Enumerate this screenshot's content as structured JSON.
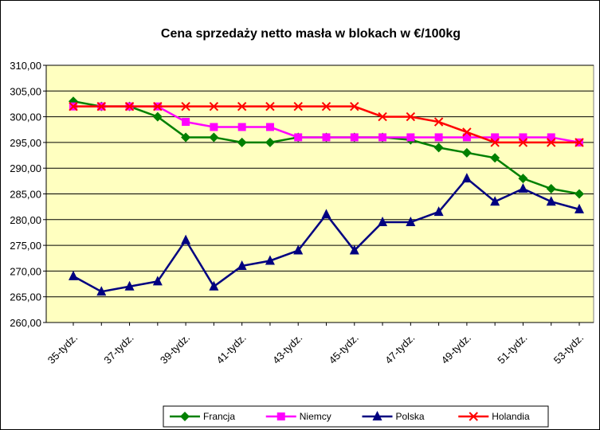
{
  "chart_data": {
    "type": "line",
    "title": "Cena sprzedaży netto masła w blokach w €/100kg",
    "categories": [
      "35-tydz.",
      null,
      "37-tydz.",
      null,
      "39-tydz.",
      null,
      "41-tydz.",
      null,
      "43-tydz.",
      null,
      "45-tydz.",
      null,
      "47-tydz.",
      null,
      "49-tydz.",
      null,
      "51-tydz.",
      null,
      "53-tydz."
    ],
    "series": [
      {
        "name": "Francja",
        "color": "#008000",
        "marker": "diamond",
        "values": [
          303,
          302,
          302,
          300,
          296,
          296,
          295,
          295,
          296,
          296,
          296,
          296,
          295.5,
          294,
          293,
          292,
          288,
          286,
          285
        ]
      },
      {
        "name": "Niemcy",
        "color": "#ff00ff",
        "marker": "square",
        "values": [
          302,
          302,
          302,
          302,
          299,
          298,
          298,
          298,
          296,
          296,
          296,
          296,
          296,
          296,
          296,
          296,
          296,
          296,
          295
        ]
      },
      {
        "name": "Polska",
        "color": "#000080",
        "marker": "triangle",
        "values": [
          269,
          266,
          267,
          268,
          276,
          267,
          271,
          272,
          274,
          281,
          274,
          279.5,
          279.5,
          281.5,
          288,
          283.5,
          286,
          283.5,
          282
        ]
      },
      {
        "name": "Holandia",
        "color": "#ff0000",
        "marker": "x",
        "values": [
          302,
          302,
          302,
          302,
          302,
          302,
          302,
          302,
          302,
          302,
          302,
          300,
          300,
          299,
          297,
          295,
          295,
          295,
          295
        ]
      }
    ],
    "ylim": [
      260,
      310
    ],
    "yticks": [
      {
        "value": 260,
        "label": "260,00"
      },
      {
        "value": 265,
        "label": "265,00"
      },
      {
        "value": 270,
        "label": "270,00"
      },
      {
        "value": 275,
        "label": "275,00"
      },
      {
        "value": 280,
        "label": "280,00"
      },
      {
        "value": 285,
        "label": "285,00"
      },
      {
        "value": 290,
        "label": "290,00"
      },
      {
        "value": 295,
        "label": "295,00"
      },
      {
        "value": 300,
        "label": "300,00"
      },
      {
        "value": 305,
        "label": "305,00"
      },
      {
        "value": 310,
        "label": "310,00"
      }
    ],
    "grid": true,
    "legend": "bottom",
    "plot_background": "#ffffc0"
  }
}
